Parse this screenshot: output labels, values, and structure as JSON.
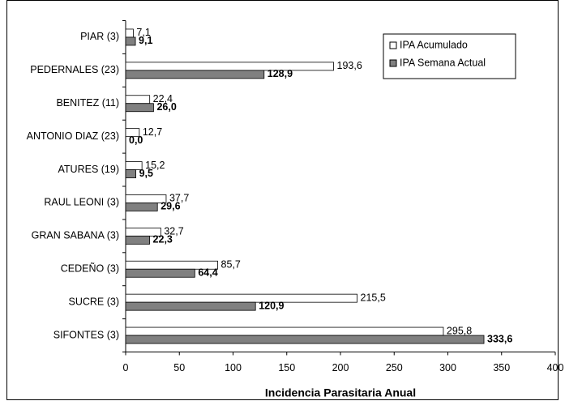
{
  "chart_data": {
    "type": "bar",
    "orientation": "horizontal",
    "x_label": "Incidencia Parasitaria Anual",
    "categories": [
      "PIAR (3)",
      "PEDERNALES (23)",
      "BENITEZ (11)",
      "ANTONIO DIAZ (23)",
      "ATURES (19)",
      "RAUL LEONI (3)",
      "GRAN SABANA (3)",
      "CEDEÑO (3)",
      "SUCRE (3)",
      "SIFONTES (3)"
    ],
    "series": [
      {
        "name": "IPA Acumulado",
        "color": "#ffffff",
        "values": [
          7.1,
          193.6,
          22.4,
          12.7,
          15.2,
          37.7,
          32.7,
          85.7,
          215.5,
          295.8
        ],
        "value_labels": [
          "7,1",
          "193,6",
          "22,4",
          "12,7",
          "15,2",
          "37,7",
          "32,7",
          "85,7",
          "215,5",
          "295,8"
        ]
      },
      {
        "name": "IPA Semana Actual",
        "color": "#808080",
        "values": [
          9.1,
          128.9,
          26.0,
          0.0,
          9.5,
          29.6,
          22.3,
          64.4,
          120.9,
          333.6
        ],
        "value_labels": [
          "9,1",
          "128,9",
          "26,0",
          "0,0",
          "9,5",
          "29,6",
          "22,3",
          "64,4",
          "120,9",
          "333,6"
        ]
      }
    ],
    "xlim": [
      0,
      400
    ],
    "xticks": [
      0,
      50,
      100,
      150,
      200,
      250,
      300,
      350,
      400
    ],
    "legend": "upper right",
    "grid": false
  }
}
